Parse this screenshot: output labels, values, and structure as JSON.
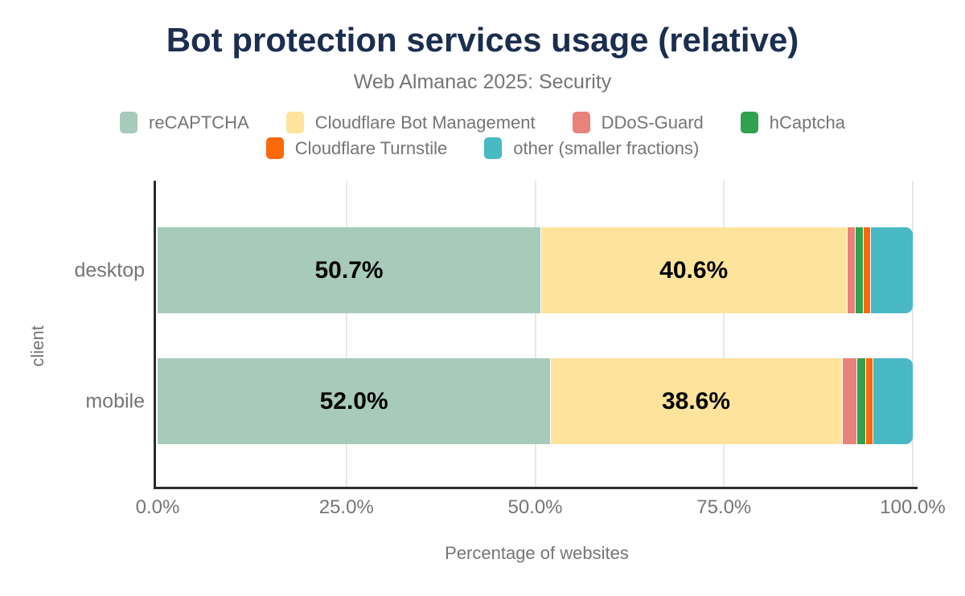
{
  "chart_data": {
    "type": "bar",
    "orientation": "horizontal",
    "stacked": true,
    "title": "Bot protection services usage (relative)",
    "subtitle": "Web Almanac 2025: Security",
    "xlabel": "Percentage of websites",
    "ylabel": "client",
    "categories": [
      "desktop",
      "mobile"
    ],
    "series": [
      {
        "name": "reCAPTCHA",
        "color": "#a7cabb",
        "values": [
          50.7,
          52.0
        ],
        "labels": [
          "50.7%",
          "52.0%"
        ]
      },
      {
        "name": "Cloudflare Bot Management",
        "color": "#fde39b",
        "values": [
          40.6,
          38.6
        ],
        "labels": [
          "40.6%",
          "38.6%"
        ]
      },
      {
        "name": "DDoS-Guard",
        "color": "#e8827a",
        "values": [
          1.0,
          1.9
        ],
        "labels": [
          null,
          null
        ]
      },
      {
        "name": "hCaptcha",
        "color": "#30a14e",
        "values": [
          1.1,
          1.2
        ],
        "labels": [
          null,
          null
        ]
      },
      {
        "name": "Cloudflare Turnstile",
        "color": "#fb6909",
        "values": [
          1.0,
          1.0
        ],
        "labels": [
          null,
          null
        ]
      },
      {
        "name": "other (smaller fractions)",
        "color": "#49b9c4",
        "values": [
          5.6,
          5.3
        ],
        "labels": [
          null,
          null
        ]
      }
    ],
    "x_ticks": [
      {
        "pct": 0,
        "label": "0.0%"
      },
      {
        "pct": 25,
        "label": "25.0%"
      },
      {
        "pct": 50,
        "label": "50.0%"
      },
      {
        "pct": 75,
        "label": "75.0%"
      },
      {
        "pct": 100,
        "label": "100.0%"
      }
    ],
    "xlim": [
      0,
      100
    ],
    "grid": "vertical",
    "legend_position": "top",
    "legend_rows": [
      [
        0,
        1,
        2,
        3
      ],
      [
        4,
        5
      ]
    ],
    "colors": {
      "title": "#1c2e4f",
      "muted_text": "#757575",
      "axis": "#2b2b28",
      "gridline": "#e7e7e7",
      "value_label": "#000000"
    }
  }
}
